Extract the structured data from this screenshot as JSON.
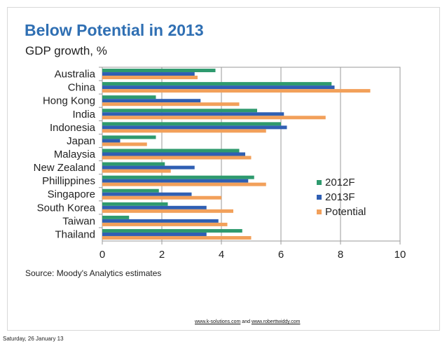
{
  "slide": {
    "title": "Below Potential in 2013",
    "subtitle": "GDP growth, %",
    "source": "Source: Moody's Analytics estimates",
    "link1": "www.k-solutions.com",
    "link_sep": " and ",
    "link2": "www.roberttwiddy.com",
    "date": "Saturday, 26 January 13"
  },
  "chart_data": {
    "type": "bar",
    "orientation": "horizontal",
    "title": "Below Potential in 2013",
    "subtitle": "GDP growth, %",
    "categories": [
      "Australia",
      "China",
      "Hong Kong",
      "India",
      "Indonesia",
      "Japan",
      "Malaysia",
      "New Zealand",
      "Phillippines",
      "Singapore",
      "South Korea",
      "Taiwan",
      "Thailand"
    ],
    "series": [
      {
        "name": "2012F",
        "color": "#2e9a6e",
        "values": [
          3.8,
          7.7,
          1.8,
          5.2,
          6.0,
          1.8,
          4.6,
          2.1,
          5.1,
          1.9,
          2.2,
          0.9,
          4.7
        ]
      },
      {
        "name": "2013F",
        "color": "#2f5fb3",
        "values": [
          3.1,
          7.8,
          3.3,
          6.1,
          6.2,
          0.6,
          4.8,
          3.1,
          4.9,
          3.0,
          3.5,
          3.9,
          3.5
        ]
      },
      {
        "name": "Potential",
        "color": "#f2a05a",
        "values": [
          3.2,
          9.0,
          4.6,
          7.5,
          5.5,
          1.5,
          5.0,
          2.3,
          5.5,
          4.0,
          4.4,
          4.2,
          5.0
        ]
      }
    ],
    "xlim": [
      0,
      10
    ],
    "xticks": [
      0,
      2,
      4,
      6,
      8,
      10
    ],
    "grid": "vertical",
    "legend_position": "right"
  }
}
